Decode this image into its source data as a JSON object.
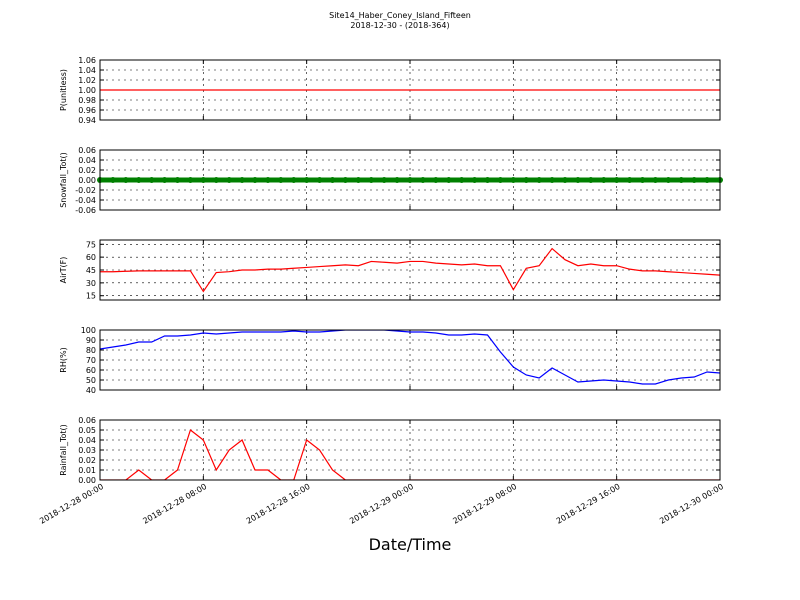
{
  "title": "Site14_Haber_Coney_Island_Fifteen",
  "subtitle": "2018-12-30 - (2018-364)",
  "xlabel": "Date/Time",
  "xlim": [
    "2018-12-28 00:00",
    "2018-12-30 00:00"
  ],
  "xticks": [
    "2018-12-28 00:00",
    "2018-12-28 08:00",
    "2018-12-28 16:00",
    "2018-12-29 00:00",
    "2018-12-29 08:00",
    "2018-12-29 16:00",
    "2018-12-30 00:00"
  ],
  "chart_data": [
    {
      "type": "line",
      "ylabel": "P(unitless)",
      "x": [
        "2018-12-28 00:00",
        "2018-12-30 00:00"
      ],
      "values": [
        1,
        1
      ],
      "color": "#ff0000",
      "ylim": [
        0.94,
        1.06
      ],
      "yticks": [
        0.94,
        0.96,
        0.98,
        {
          "value": 1,
          "label": "1.00"
        },
        1.02,
        1.04,
        1.06
      ],
      "grid": true
    },
    {
      "type": "scatter",
      "ylabel": "Snowfall_Tot()",
      "x": [
        "2018-12-28 00:00",
        "2018-12-28 01:00",
        "2018-12-28 02:00",
        "2018-12-28 03:00",
        "2018-12-28 04:00",
        "2018-12-28 05:00",
        "2018-12-28 06:00",
        "2018-12-28 07:00",
        "2018-12-28 08:00",
        "2018-12-28 09:00",
        "2018-12-28 10:00",
        "2018-12-28 11:00",
        "2018-12-28 12:00",
        "2018-12-28 13:00",
        "2018-12-28 14:00",
        "2018-12-28 15:00",
        "2018-12-28 16:00",
        "2018-12-28 17:00",
        "2018-12-28 18:00",
        "2018-12-28 19:00",
        "2018-12-28 20:00",
        "2018-12-28 21:00",
        "2018-12-28 22:00",
        "2018-12-28 23:00",
        "2018-12-29 00:00",
        "2018-12-29 01:00",
        "2018-12-29 02:00",
        "2018-12-29 03:00",
        "2018-12-29 04:00",
        "2018-12-29 05:00",
        "2018-12-29 06:00",
        "2018-12-29 07:00",
        "2018-12-29 08:00",
        "2018-12-29 09:00",
        "2018-12-29 10:00",
        "2018-12-29 11:00",
        "2018-12-29 12:00",
        "2018-12-29 13:00",
        "2018-12-29 14:00",
        "2018-12-29 15:00",
        "2018-12-29 16:00",
        "2018-12-29 17:00",
        "2018-12-29 18:00",
        "2018-12-29 19:00",
        "2018-12-29 20:00",
        "2018-12-29 21:00",
        "2018-12-29 22:00",
        "2018-12-29 23:00",
        "2018-12-30 00:00"
      ],
      "values": [
        0,
        0,
        0,
        0,
        0,
        0,
        0,
        0,
        0,
        0,
        0,
        0,
        0,
        0,
        0,
        0,
        0,
        0,
        0,
        0,
        0,
        0,
        0,
        0,
        0,
        0,
        0,
        0,
        0,
        0,
        0,
        0,
        0,
        0,
        0,
        0,
        0,
        0,
        0,
        0,
        0,
        0,
        0,
        0,
        0,
        0,
        0,
        0,
        0
      ],
      "color": "#008000",
      "ylim": [
        -0.06,
        0.06
      ],
      "yticks": [
        -0.06,
        -0.04,
        -0.02,
        {
          "value": 0,
          "label": "0.00"
        },
        0.02,
        0.04,
        0.06
      ],
      "grid": true
    },
    {
      "type": "line",
      "ylabel": "AirT(F)",
      "x": [
        "2018-12-28 00:00",
        "2018-12-28 01:00",
        "2018-12-28 02:00",
        "2018-12-28 03:00",
        "2018-12-28 04:00",
        "2018-12-28 05:00",
        "2018-12-28 06:00",
        "2018-12-28 07:00",
        "2018-12-28 08:00",
        "2018-12-28 09:00",
        "2018-12-28 10:00",
        "2018-12-28 11:00",
        "2018-12-28 12:00",
        "2018-12-28 13:00",
        "2018-12-28 14:00",
        "2018-12-28 15:00",
        "2018-12-28 16:00",
        "2018-12-28 17:00",
        "2018-12-28 18:00",
        "2018-12-28 19:00",
        "2018-12-28 20:00",
        "2018-12-28 21:00",
        "2018-12-28 22:00",
        "2018-12-28 23:00",
        "2018-12-29 00:00",
        "2018-12-29 01:00",
        "2018-12-29 02:00",
        "2018-12-29 03:00",
        "2018-12-29 04:00",
        "2018-12-29 05:00",
        "2018-12-29 06:00",
        "2018-12-29 07:00",
        "2018-12-29 08:00",
        "2018-12-29 09:00",
        "2018-12-29 10:00",
        "2018-12-29 11:00",
        "2018-12-29 12:00",
        "2018-12-29 13:00",
        "2018-12-29 14:00",
        "2018-12-29 15:00",
        "2018-12-29 16:00",
        "2018-12-29 17:00",
        "2018-12-29 18:00",
        "2018-12-29 19:00",
        "2018-12-29 20:00",
        "2018-12-29 21:00",
        "2018-12-29 22:00",
        "2018-12-29 23:00",
        "2018-12-30 00:00"
      ],
      "values": [
        43,
        43,
        43.5,
        44,
        44,
        44,
        44,
        44,
        20,
        42,
        43,
        45,
        45,
        46,
        46,
        47,
        48,
        49,
        50,
        51,
        50,
        55,
        54,
        53,
        55,
        55,
        53,
        52,
        51,
        52,
        50,
        50,
        22,
        47,
        50,
        70,
        57,
        50,
        52,
        50,
        50,
        46,
        44,
        44,
        43,
        42,
        41,
        40,
        39
      ],
      "color": "#ff0000",
      "ylim": [
        10,
        80
      ],
      "yticks": [
        15,
        30,
        45,
        60,
        75
      ],
      "grid": true
    },
    {
      "type": "line",
      "ylabel": "RH(%)",
      "x": [
        "2018-12-28 00:00",
        "2018-12-28 01:00",
        "2018-12-28 02:00",
        "2018-12-28 03:00",
        "2018-12-28 04:00",
        "2018-12-28 05:00",
        "2018-12-28 06:00",
        "2018-12-28 07:00",
        "2018-12-28 08:00",
        "2018-12-28 09:00",
        "2018-12-28 10:00",
        "2018-12-28 11:00",
        "2018-12-28 12:00",
        "2018-12-28 13:00",
        "2018-12-28 14:00",
        "2018-12-28 15:00",
        "2018-12-28 16:00",
        "2018-12-28 17:00",
        "2018-12-28 18:00",
        "2018-12-28 19:00",
        "2018-12-28 20:00",
        "2018-12-28 21:00",
        "2018-12-28 22:00",
        "2018-12-28 23:00",
        "2018-12-29 00:00",
        "2018-12-29 01:00",
        "2018-12-29 02:00",
        "2018-12-29 03:00",
        "2018-12-29 04:00",
        "2018-12-29 05:00",
        "2018-12-29 06:00",
        "2018-12-29 07:00",
        "2018-12-29 08:00",
        "2018-12-29 09:00",
        "2018-12-29 10:00",
        "2018-12-29 11:00",
        "2018-12-29 12:00",
        "2018-12-29 13:00",
        "2018-12-29 14:00",
        "2018-12-29 15:00",
        "2018-12-29 16:00",
        "2018-12-29 17:00",
        "2018-12-29 18:00",
        "2018-12-29 19:00",
        "2018-12-29 20:00",
        "2018-12-29 21:00",
        "2018-12-29 22:00",
        "2018-12-29 23:00",
        "2018-12-30 00:00"
      ],
      "values": [
        81,
        83,
        85,
        88,
        88,
        94,
        94,
        95,
        97,
        96,
        97,
        98,
        98,
        98,
        98,
        99,
        98,
        98,
        99,
        100,
        100,
        100,
        100,
        99,
        98,
        98,
        97,
        95,
        95,
        96,
        95,
        78,
        63,
        55,
        52,
        62,
        55,
        48,
        49,
        50,
        49,
        48,
        46,
        46,
        50,
        52,
        53,
        58,
        57
      ],
      "color": "#0000ff",
      "ylim": [
        40,
        100
      ],
      "yticks": [
        40,
        50,
        60,
        70,
        80,
        90,
        100
      ],
      "grid": true
    },
    {
      "type": "line",
      "ylabel": "Rainfall_Tot()",
      "x": [
        "2018-12-28 00:00",
        "2018-12-28 01:00",
        "2018-12-28 02:00",
        "2018-12-28 03:00",
        "2018-12-28 04:00",
        "2018-12-28 05:00",
        "2018-12-28 06:00",
        "2018-12-28 07:00",
        "2018-12-28 08:00",
        "2018-12-28 09:00",
        "2018-12-28 10:00",
        "2018-12-28 11:00",
        "2018-12-28 12:00",
        "2018-12-28 13:00",
        "2018-12-28 14:00",
        "2018-12-28 15:00",
        "2018-12-28 16:00",
        "2018-12-28 17:00",
        "2018-12-28 18:00",
        "2018-12-28 19:00",
        "2018-12-28 20:00",
        "2018-12-28 21:00",
        "2018-12-28 22:00",
        "2018-12-28 23:00",
        "2018-12-29 00:00",
        "2018-12-29 01:00",
        "2018-12-29 02:00",
        "2018-12-29 03:00",
        "2018-12-29 04:00",
        "2018-12-29 05:00",
        "2018-12-29 06:00",
        "2018-12-29 07:00",
        "2018-12-29 08:00",
        "2018-12-29 09:00",
        "2018-12-29 10:00",
        "2018-12-29 11:00",
        "2018-12-29 12:00",
        "2018-12-29 13:00",
        "2018-12-29 14:00",
        "2018-12-29 15:00",
        "2018-12-29 16:00",
        "2018-12-29 17:00",
        "2018-12-29 18:00",
        "2018-12-29 19:00",
        "2018-12-29 20:00",
        "2018-12-29 21:00",
        "2018-12-29 22:00",
        "2018-12-29 23:00",
        "2018-12-30 00:00"
      ],
      "values": [
        0,
        0,
        0,
        0.01,
        0,
        0,
        0.01,
        0.05,
        0.04,
        0.01,
        0.03,
        0.04,
        0.01,
        0.01,
        0,
        0,
        0.04,
        0.03,
        0.01,
        0,
        0,
        0,
        0,
        0,
        0,
        0,
        0,
        0,
        0,
        0,
        0,
        0,
        0,
        0,
        0,
        0,
        0,
        0,
        0,
        0,
        0,
        0,
        0,
        0,
        0,
        0,
        0,
        0,
        0
      ],
      "color": "#ff0000",
      "ylim": [
        0,
        0.06
      ],
      "yticks": [
        {
          "value": 0,
          "label": "0.00"
        },
        0.01,
        0.02,
        0.03,
        0.04,
        0.05,
        0.06
      ],
      "grid": true
    }
  ]
}
